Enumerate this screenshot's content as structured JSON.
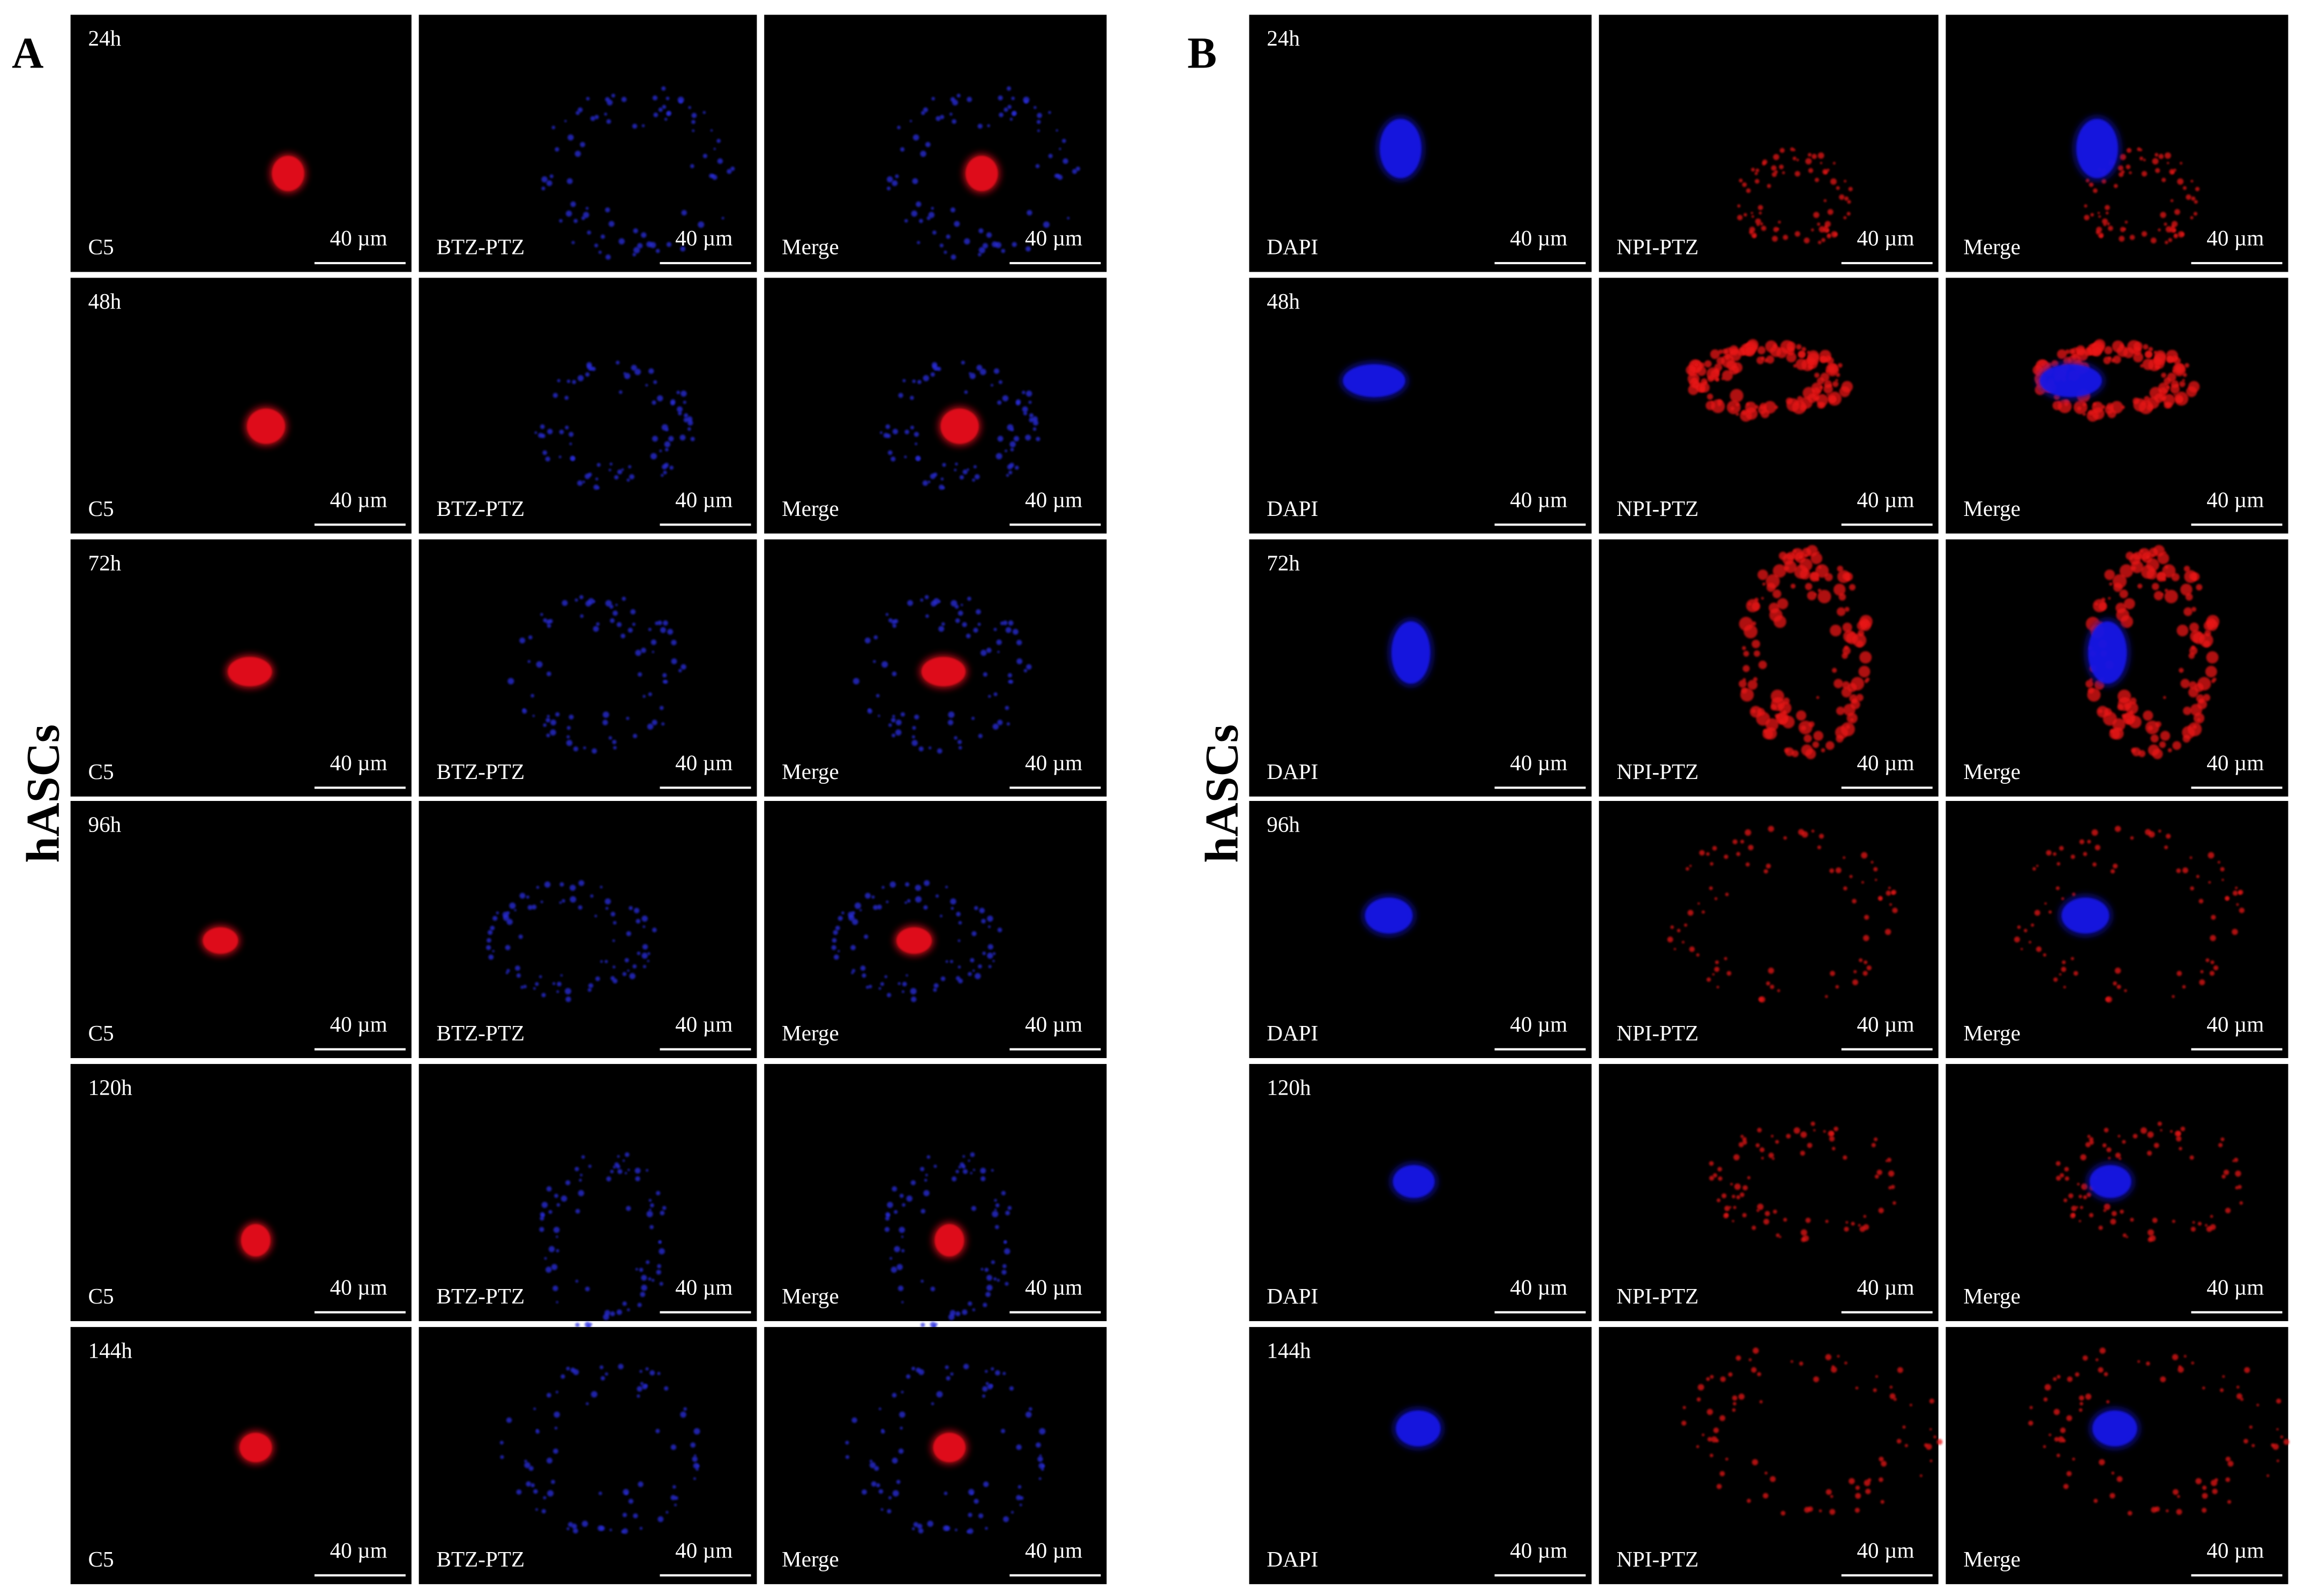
{
  "figure": {
    "panels": [
      {
        "label": "A",
        "side_label": "hASCs",
        "times": [
          "24h",
          "48h",
          "72h",
          "96h",
          "120h",
          "144h"
        ],
        "channels": [
          "C5",
          "BTZ-PTZ",
          "Merge"
        ],
        "scale_bar": "40 µm"
      },
      {
        "label": "B",
        "side_label": "hASCs",
        "times": [
          "24h",
          "48h",
          "72h",
          "96h",
          "120h",
          "144h"
        ],
        "channels": [
          "DAPI",
          "NPI-PTZ",
          "Merge"
        ],
        "scale_bar": "40 µm"
      }
    ]
  }
}
